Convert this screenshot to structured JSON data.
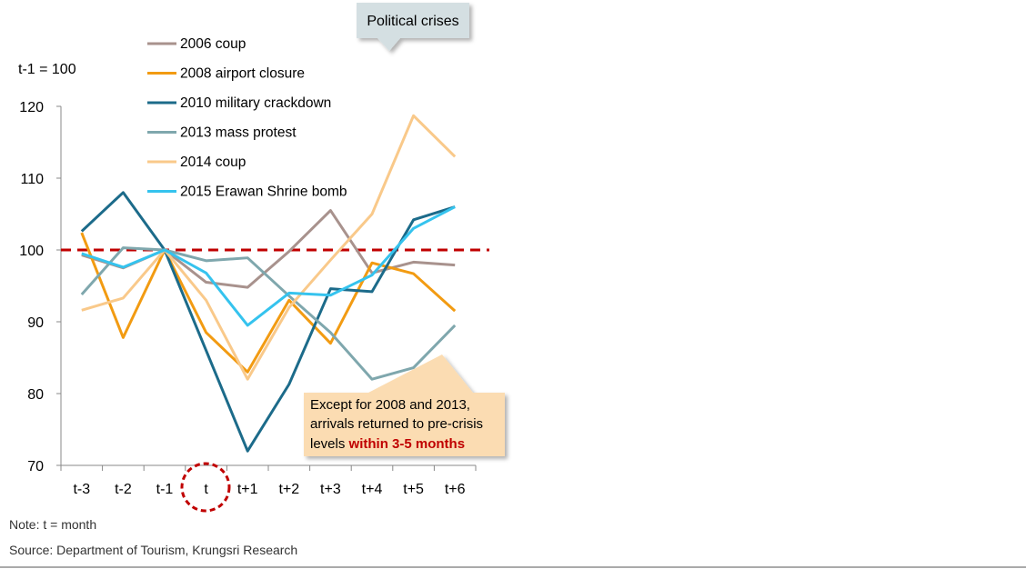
{
  "chart_data": {
    "type": "line",
    "unit_label": "t-1 = 100",
    "categories": [
      "t-3",
      "t-2",
      "t-1",
      "t",
      "t+1",
      "t+2",
      "t+3",
      "t+4",
      "t+5",
      "t+6"
    ],
    "ylim": [
      70,
      120
    ],
    "yticks": [
      70,
      80,
      90,
      100,
      110,
      120
    ],
    "reference_line": 100,
    "series": [
      {
        "name": "2006 coup",
        "color": "#a8928d",
        "values": [
          99.3,
          97.5,
          100,
          95.5,
          94.8,
          99.8,
          105.5,
          96.8,
          98.3,
          97.9
        ]
      },
      {
        "name": "2008 airport closure",
        "color": "#f29b12",
        "values": [
          102.4,
          87.8,
          100,
          88.5,
          83,
          93,
          87,
          98.2,
          96.7,
          91.5
        ]
      },
      {
        "name": "2010 military crackdown",
        "color": "#1c6b8a",
        "values": [
          102.6,
          108,
          100,
          86,
          72,
          81.3,
          94.6,
          94.2,
          104.2,
          106
        ]
      },
      {
        "name": "2013 mass protest",
        "color": "#7fa7ad",
        "values": [
          93.8,
          100.3,
          100,
          98.5,
          98.9,
          93.6,
          88.5,
          82,
          83.6,
          89.5
        ]
      },
      {
        "name": "2014 coup",
        "color": "#f9c98a",
        "values": [
          91.6,
          93.3,
          100,
          93,
          82,
          92,
          98.6,
          105,
          118.7,
          113
        ]
      },
      {
        "name": "2015 Erawan Shrine bomb",
        "color": "#35c3ee",
        "values": [
          99.5,
          97.6,
          100,
          96.8,
          89.5,
          94,
          93.7,
          96.5,
          103,
          106
        ]
      }
    ],
    "callout_title": "Political crises",
    "annotation": {
      "line1": "Except for 2008  and 2013,",
      "line2": "arrivals returned to pre-crisis",
      "line3_prefix": "levels ",
      "line3_highlight": "within 3-5 months"
    },
    "note": "Note: t = month",
    "source": "Source: Department of Tourism, Krungsri Research"
  }
}
